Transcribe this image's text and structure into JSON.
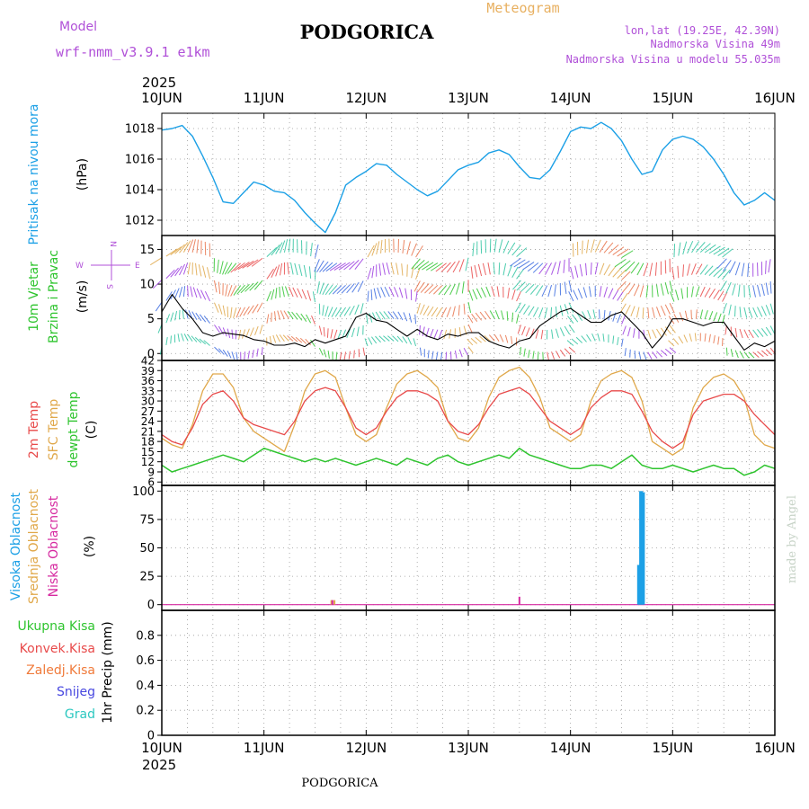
{
  "header": {
    "model_label": "Model",
    "model_name": "wrf-nmm_v3.9.1 e1km",
    "station_title": "PODGORICA",
    "product_title": "Meteogram",
    "coords": "lon,lat (19.25E, 42.39N)",
    "elevation": "Nadmorska Visina 49m",
    "model_elevation": "Nadmorska Visina u modelu 55.035m",
    "footer_station": "PODGORICA",
    "credit": "made by Angel"
  },
  "time_axis": {
    "year": "2025",
    "labels": [
      "10JUN",
      "11JUN",
      "12JUN",
      "13JUN",
      "14JUN",
      "15JUN",
      "16JUN"
    ]
  },
  "wind_legend": {
    "n": "N",
    "w": "W",
    "e": "E",
    "s": "S"
  },
  "colors": {
    "pressure": "#1ca0e6",
    "temp2m": "#e84a4a",
    "sfc_temp": "#e0a84a",
    "dewpoint": "#2ec42e",
    "wind_speed": "#000000",
    "cloud_high": "#1ca0e6",
    "cloud_mid": "#e0a84a",
    "cloud_low": "#d62aa0",
    "precip_total": "#2ec42e",
    "precip_conv": "#e84a4a",
    "precip_frozen": "#f07a3a",
    "snow": "#4848e0",
    "graupel": "#2cc8c0",
    "model_text": "#b050d8",
    "meteogram_text": "#e8b060",
    "credit_text": "#c8d4c8"
  },
  "chart_data": [
    {
      "type": "line",
      "name": "pressure",
      "ylabel_lines": [
        "Pritisak na nivou mora"
      ],
      "unit": "(hPa)",
      "ylim": [
        1011,
        1019
      ],
      "yticks": [
        1012,
        1014,
        1016,
        1018
      ],
      "grid": true,
      "x_days": [
        0,
        0.1,
        0.2,
        0.3,
        0.4,
        0.5,
        0.6,
        0.7,
        0.8,
        0.9,
        1.0,
        1.1,
        1.2,
        1.3,
        1.4,
        1.5,
        1.6,
        1.7,
        1.8,
        1.9,
        2.0,
        2.1,
        2.2,
        2.3,
        2.4,
        2.5,
        2.6,
        2.7,
        2.8,
        2.9,
        3.0,
        3.1,
        3.2,
        3.3,
        3.4,
        3.5,
        3.6,
        3.7,
        3.8,
        3.9,
        4.0,
        4.1,
        4.2,
        4.3,
        4.4,
        4.5,
        4.6,
        4.7,
        4.8,
        4.9,
        5.0,
        5.1,
        5.2,
        5.3,
        5.4,
        5.5,
        5.6,
        5.7,
        5.8,
        5.9,
        6.0
      ],
      "series": [
        {
          "values": [
            1017.9,
            1018.0,
            1018.2,
            1017.5,
            1016.2,
            1014.8,
            1013.2,
            1013.1,
            1013.8,
            1014.5,
            1014.3,
            1013.9,
            1013.8,
            1013.3,
            1012.5,
            1011.8,
            1011.2,
            1012.5,
            1014.3,
            1014.8,
            1015.2,
            1015.7,
            1015.6,
            1015.0,
            1014.5,
            1014.0,
            1013.6,
            1013.9,
            1014.6,
            1015.3,
            1015.6,
            1015.8,
            1016.4,
            1016.6,
            1016.3,
            1015.5,
            1014.8,
            1014.7,
            1015.3,
            1016.5,
            1017.8,
            1018.1,
            1018.0,
            1018.4,
            1018.0,
            1017.2,
            1016.0,
            1015.0,
            1015.2,
            1016.6,
            1017.3,
            1017.5,
            1017.3,
            1016.8,
            1016.0,
            1015.0,
            1013.8,
            1013.0,
            1013.3,
            1013.8,
            1013.3
          ]
        }
      ]
    },
    {
      "type": "line",
      "name": "wind",
      "ylabel_lines": [
        "10m Vjetar",
        "Brzina i Pravac"
      ],
      "unit": "(m/s)",
      "ylim": [
        -1,
        17
      ],
      "yticks": [
        0,
        5,
        10,
        15
      ],
      "grid": true,
      "x_days": [
        0,
        0.1,
        0.2,
        0.3,
        0.4,
        0.5,
        0.6,
        0.7,
        0.8,
        0.9,
        1.0,
        1.1,
        1.2,
        1.3,
        1.4,
        1.5,
        1.6,
        1.7,
        1.8,
        1.9,
        2.0,
        2.1,
        2.2,
        2.3,
        2.4,
        2.5,
        2.6,
        2.7,
        2.8,
        2.9,
        3.0,
        3.1,
        3.2,
        3.3,
        3.4,
        3.5,
        3.6,
        3.7,
        3.8,
        3.9,
        4.0,
        4.1,
        4.2,
        4.3,
        4.4,
        4.5,
        4.6,
        4.7,
        4.8,
        4.9,
        5.0,
        5.1,
        5.2,
        5.3,
        5.4,
        5.5,
        5.6,
        5.7,
        5.8,
        5.9,
        6.0
      ],
      "series": [
        {
          "values": [
            6.0,
            8.5,
            6.5,
            5.0,
            3.0,
            2.5,
            3.0,
            2.8,
            2.6,
            2.0,
            1.8,
            1.2,
            1.2,
            1.5,
            1.0,
            2.0,
            1.5,
            2.0,
            2.5,
            5.2,
            5.8,
            4.8,
            4.5,
            3.5,
            2.5,
            3.5,
            2.5,
            2.0,
            2.8,
            2.5,
            3.0,
            3.0,
            1.8,
            1.2,
            0.8,
            1.8,
            2.2,
            4.0,
            5.0,
            6.0,
            6.5,
            5.5,
            4.5,
            4.5,
            5.5,
            6.0,
            4.5,
            3.0,
            0.8,
            2.5,
            5.0,
            5.0,
            4.5,
            4.0,
            4.5,
            4.5,
            2.5,
            0.5,
            1.5,
            1.0,
            1.8
          ]
        }
      ]
    },
    {
      "type": "line",
      "name": "temperature",
      "ylabel_lines": [
        "2m Temp",
        "SFC Temp",
        "dewpt Temp"
      ],
      "unit": "(C)",
      "ylim": [
        5,
        42
      ],
      "yticks": [
        6,
        9,
        12,
        15,
        18,
        21,
        24,
        27,
        30,
        33,
        36,
        39,
        42
      ],
      "grid": true,
      "x_days": [
        0,
        0.1,
        0.2,
        0.3,
        0.4,
        0.5,
        0.6,
        0.7,
        0.8,
        0.9,
        1.0,
        1.1,
        1.2,
        1.3,
        1.4,
        1.5,
        1.6,
        1.7,
        1.8,
        1.9,
        2.0,
        2.1,
        2.2,
        2.3,
        2.4,
        2.5,
        2.6,
        2.7,
        2.8,
        2.9,
        3.0,
        3.1,
        3.2,
        3.3,
        3.4,
        3.5,
        3.6,
        3.7,
        3.8,
        3.9,
        4.0,
        4.1,
        4.2,
        4.3,
        4.4,
        4.5,
        4.6,
        4.7,
        4.8,
        4.9,
        5.0,
        5.1,
        5.2,
        5.3,
        5.4,
        5.5,
        5.6,
        5.7,
        5.8,
        5.9,
        6.0
      ],
      "series": [
        {
          "name": "2m Temp",
          "values": [
            20,
            18,
            17,
            22,
            29,
            32,
            33,
            30,
            25,
            23,
            22,
            21,
            20,
            24,
            30,
            33,
            34,
            33,
            28,
            22,
            20,
            22,
            27,
            31,
            33,
            33,
            32,
            30,
            24,
            21,
            20,
            23,
            28,
            32,
            33,
            34,
            32,
            28,
            24,
            22,
            20,
            22,
            28,
            31,
            33,
            33,
            32,
            27,
            21,
            18,
            16,
            18,
            26,
            30,
            31,
            32,
            32,
            30,
            26,
            23,
            20
          ]
        },
        {
          "name": "SFC Temp",
          "values": [
            19,
            17,
            16,
            23,
            33,
            38,
            38,
            34,
            25,
            21,
            19,
            17,
            15,
            23,
            33,
            38,
            39,
            37,
            28,
            20,
            18,
            20,
            28,
            35,
            38,
            39,
            37,
            34,
            24,
            19,
            18,
            22,
            31,
            37,
            39,
            40,
            37,
            31,
            22,
            20,
            18,
            20,
            30,
            36,
            38,
            39,
            37,
            30,
            18,
            16,
            14,
            16,
            28,
            34,
            37,
            38,
            36,
            31,
            20,
            17,
            16
          ]
        },
        {
          "name": "dewpt Temp",
          "values": [
            11,
            9,
            10,
            11,
            12,
            13,
            14,
            13,
            12,
            14,
            16,
            15,
            14,
            13,
            12,
            13,
            12,
            13,
            12,
            11,
            12,
            13,
            12,
            11,
            13,
            12,
            11,
            13,
            14,
            12,
            11,
            12,
            13,
            14,
            13,
            16,
            14,
            13,
            12,
            11,
            10,
            10,
            11,
            11,
            10,
            12,
            14,
            11,
            10,
            10,
            11,
            10,
            9,
            10,
            11,
            10,
            10,
            8,
            9,
            11,
            10
          ]
        }
      ]
    },
    {
      "type": "bar",
      "name": "cloud",
      "ylabel_lines": [
        "Visoka Oblacnost",
        "Srednja Oblacnost",
        "Niska Oblacnost"
      ],
      "unit": "(%)",
      "ylim": [
        -5,
        105
      ],
      "yticks": [
        0,
        25,
        50,
        75,
        100
      ],
      "grid": true,
      "series": [
        {
          "name": "Visoka Oblacnost",
          "bars": [
            {
              "x": 4.67,
              "value": 35
            },
            {
              "x": 4.69,
              "value": 100
            },
            {
              "x": 4.71,
              "value": 99
            }
          ]
        },
        {
          "name": "Srednja Oblacnost",
          "bars": [
            {
              "x": 1.66,
              "value": 4
            },
            {
              "x": 1.69,
              "value": 4
            }
          ]
        },
        {
          "name": "Niska Oblacnost",
          "bars": [
            {
              "x": 1.67,
              "value": 4
            },
            {
              "x": 3.5,
              "value": 7
            }
          ]
        }
      ]
    },
    {
      "type": "bar",
      "name": "precip",
      "ylabel_lines": [
        "1hr Precip (mm)"
      ],
      "legend": [
        "Ukupna Kisa",
        "Konvek.Kisa",
        "Zaledj.Kisa",
        "Snijeg",
        "Grad"
      ],
      "unit": "",
      "ylim": [
        0,
        1.0
      ],
      "yticks": [
        0,
        0.2,
        0.4,
        0.6,
        0.8
      ],
      "grid": true,
      "series": []
    }
  ]
}
